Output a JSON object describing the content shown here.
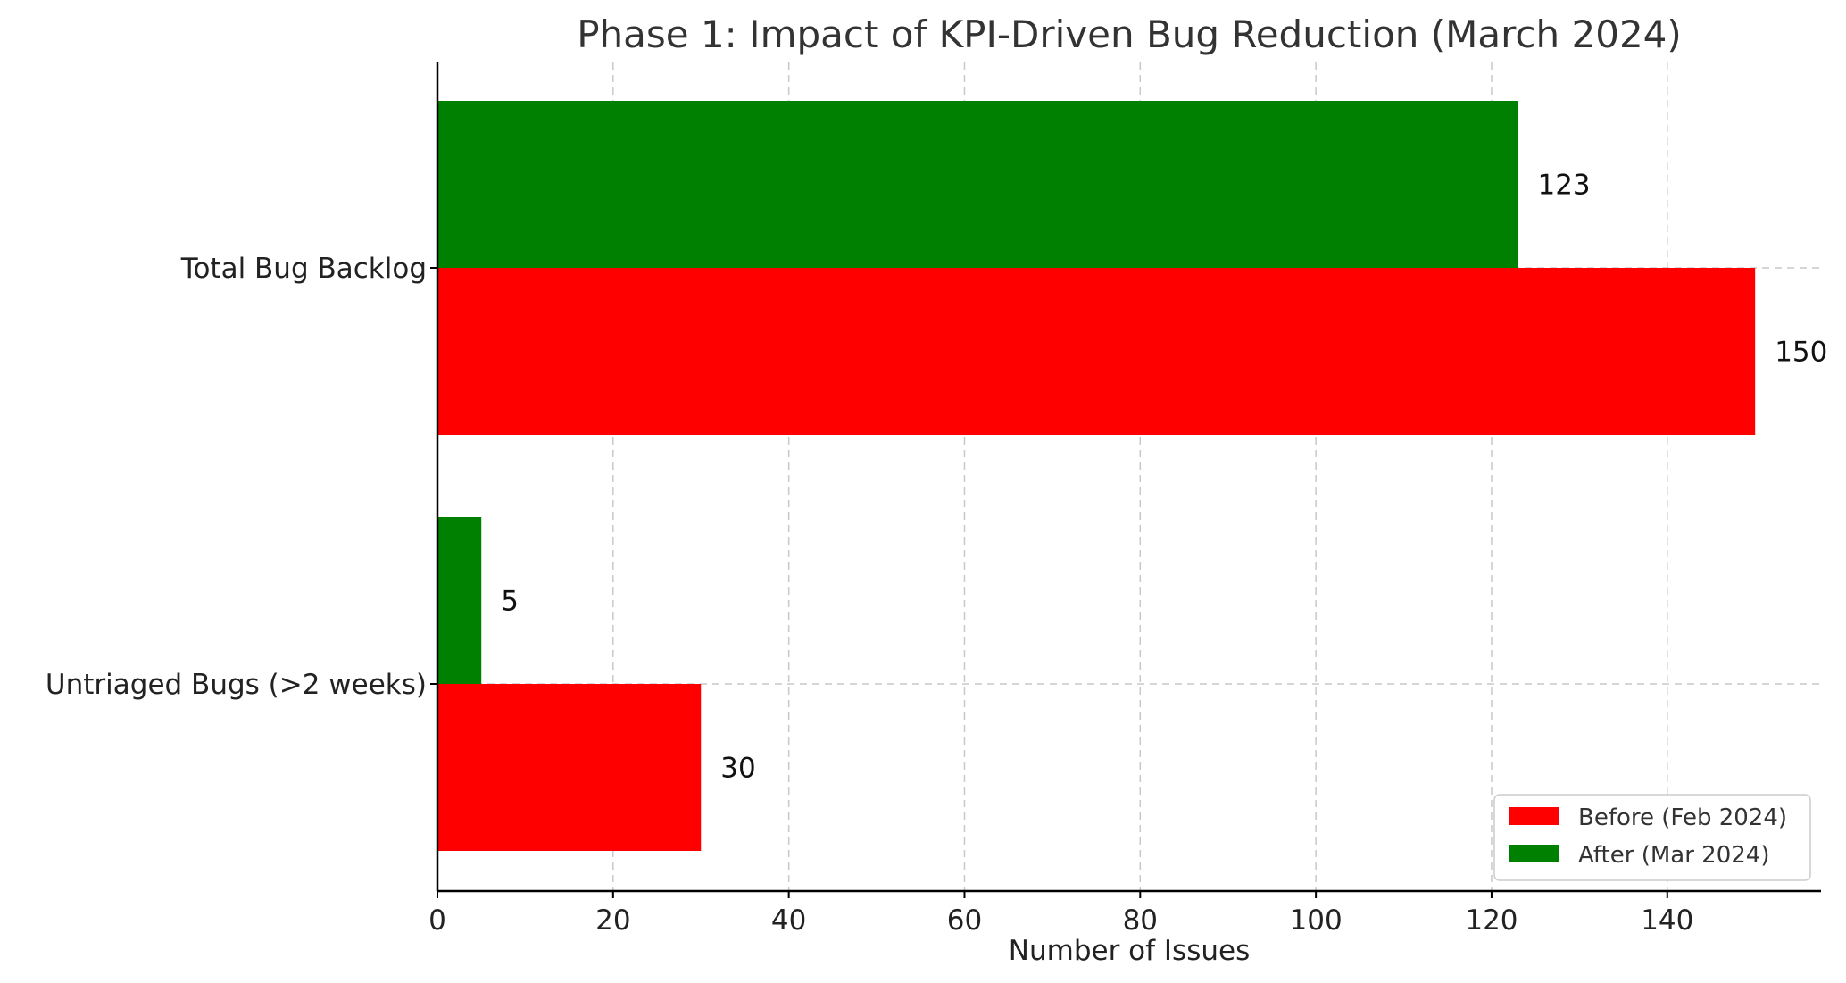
{
  "chart_data": {
    "type": "bar",
    "orientation": "horizontal",
    "title": "Phase 1: Impact of KPI-Driven Bug Reduction (March 2024)",
    "xlabel": "Number of Issues",
    "ylabel": "",
    "xlim": [
      0,
      157.5
    ],
    "xticks": [
      0,
      20,
      40,
      60,
      80,
      100,
      120,
      140
    ],
    "categories": [
      "Total Bug Backlog",
      "Untriaged Bugs (>2 weeks)"
    ],
    "series": [
      {
        "name": "Before (Feb 2024)",
        "color": "#ff0000",
        "values": [
          150,
          30
        ]
      },
      {
        "name": "After (Mar 2024)",
        "color": "#008000",
        "values": [
          123,
          5
        ]
      }
    ],
    "grid": true,
    "legend_position": "bottom-right"
  }
}
